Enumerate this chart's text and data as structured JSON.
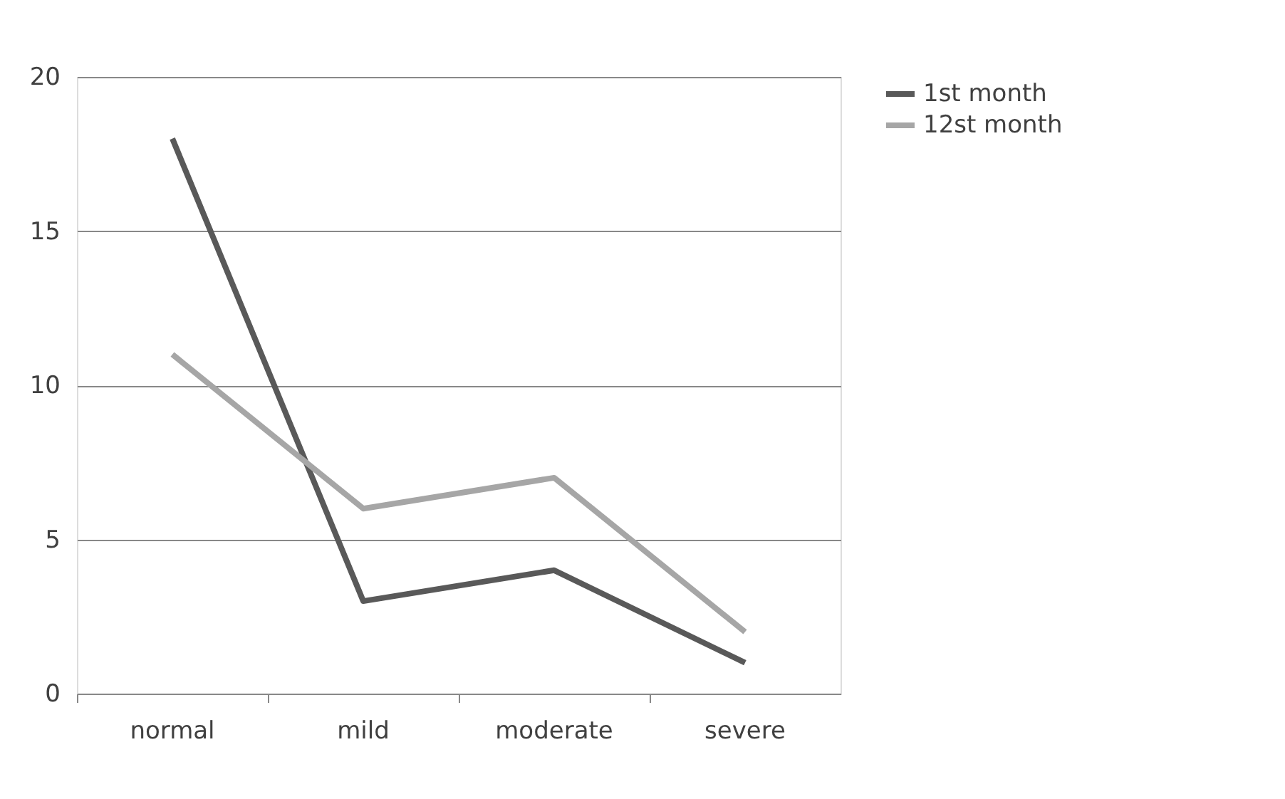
{
  "chart_data": {
    "type": "line",
    "categories": [
      "normal",
      "mild",
      "moderate",
      "severe"
    ],
    "series": [
      {
        "name": "1st month",
        "color": "#595959",
        "values": [
          18,
          3,
          4,
          1
        ]
      },
      {
        "name": "12st month",
        "color": "#a6a6a6",
        "values": [
          11,
          6,
          7,
          2
        ]
      }
    ],
    "ylim": [
      0,
      20
    ],
    "yticks": [
      0,
      5,
      10,
      15,
      20
    ],
    "grid": "y",
    "legend": "right",
    "marker": "none",
    "line_style": "solid"
  }
}
